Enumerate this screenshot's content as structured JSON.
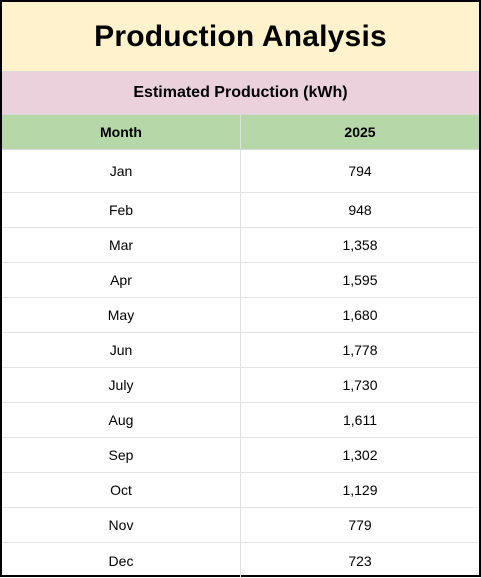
{
  "title": "Production Analysis",
  "subtitle": "Estimated Production (kWh)",
  "columns": {
    "month": "Month",
    "year": "2025"
  },
  "rows": [
    {
      "month": "Jan",
      "value": "794"
    },
    {
      "month": "Feb",
      "value": "948"
    },
    {
      "month": "Mar",
      "value": "1,358"
    },
    {
      "month": "Apr",
      "value": "1,595"
    },
    {
      "month": "May",
      "value": "1,680"
    },
    {
      "month": "Jun",
      "value": "1,778"
    },
    {
      "month": "July",
      "value": "1,730"
    },
    {
      "month": "Aug",
      "value": "1,611"
    },
    {
      "month": "Sep",
      "value": "1,302"
    },
    {
      "month": "Oct",
      "value": "1,129"
    },
    {
      "month": "Nov",
      "value": "779"
    },
    {
      "month": "Dec",
      "value": "723"
    }
  ],
  "colors": {
    "title_bg": "#fff2cc",
    "subtitle_bg": "#ead1dc",
    "header_bg": "#b6d7a8",
    "border": "#000000"
  }
}
